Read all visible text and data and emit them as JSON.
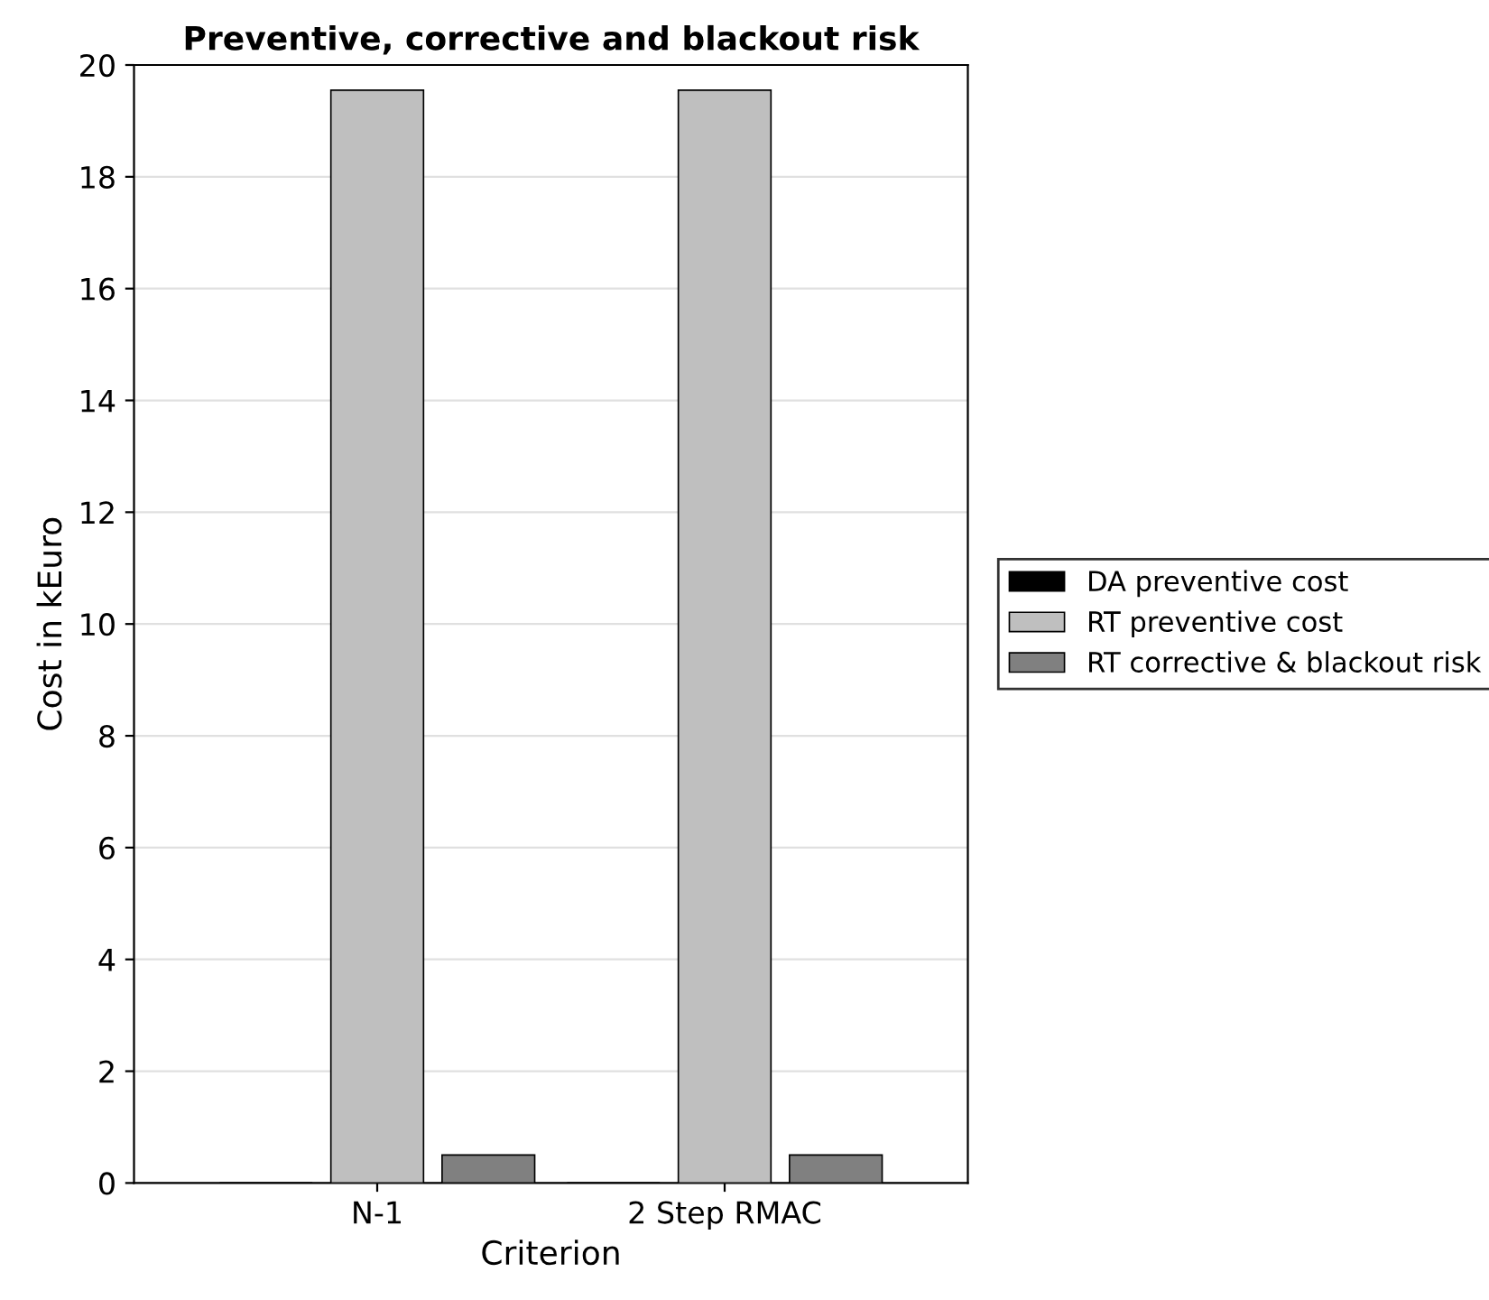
{
  "chart_data": {
    "type": "bar",
    "title": "Preventive, corrective and blackout risk",
    "xlabel": "Criterion",
    "ylabel": "Cost in kEuro",
    "categories": [
      "N-1",
      "2 Step RMAC"
    ],
    "series": [
      {
        "name": "DA preventive cost",
        "color": "#000000",
        "values": [
          0,
          0
        ]
      },
      {
        "name": "RT preventive cost",
        "color": "#bfbfbf",
        "values": [
          19.55,
          19.55
        ]
      },
      {
        "name": "RT corrective & blackout risk",
        "color": "#808080",
        "values": [
          0.5,
          0.5
        ]
      }
    ],
    "ylim": [
      0,
      20
    ],
    "yticks": [
      0,
      2,
      4,
      6,
      8,
      10,
      12,
      14,
      16,
      18,
      20
    ],
    "grid": "y",
    "legend": "right"
  }
}
